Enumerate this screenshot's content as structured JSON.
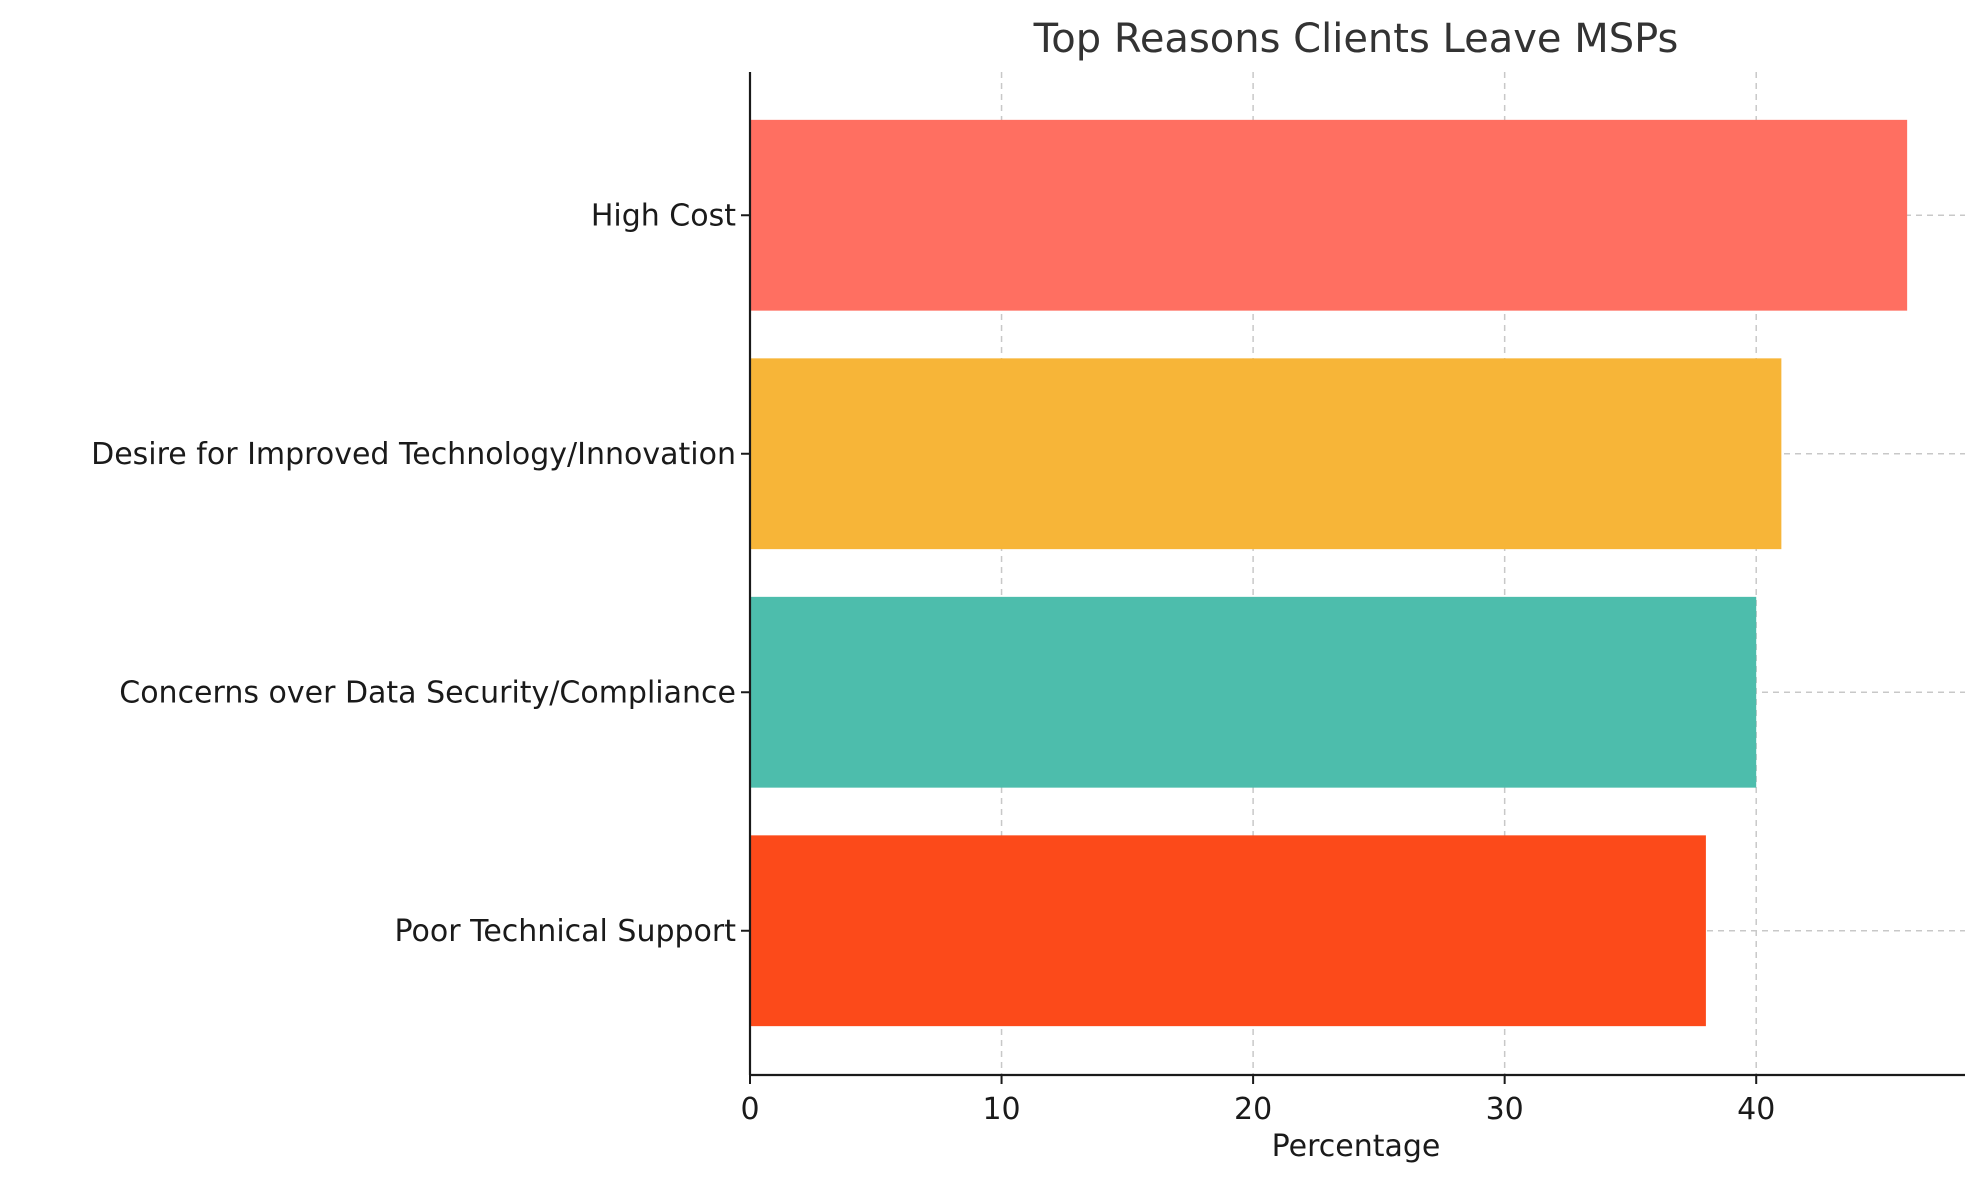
{
  "chart_data": {
    "type": "bar",
    "orientation": "horizontal",
    "title": "Top Reasons Clients Leave MSPs",
    "xlabel": "Percentage",
    "ylabel": "",
    "categories": [
      "High Cost",
      "Desire for Improved Technology/Innovation",
      "Concerns over Data Security/Compliance",
      "Poor Technical Support"
    ],
    "values": [
      46,
      41,
      40,
      38
    ],
    "colors": [
      "#FF6F61",
      "#F7B538",
      "#4DBDAC",
      "#FC4A1A"
    ],
    "xticks": [
      0,
      10,
      20,
      30,
      40
    ],
    "xlim": [
      0,
      48.3
    ],
    "grid": true
  }
}
